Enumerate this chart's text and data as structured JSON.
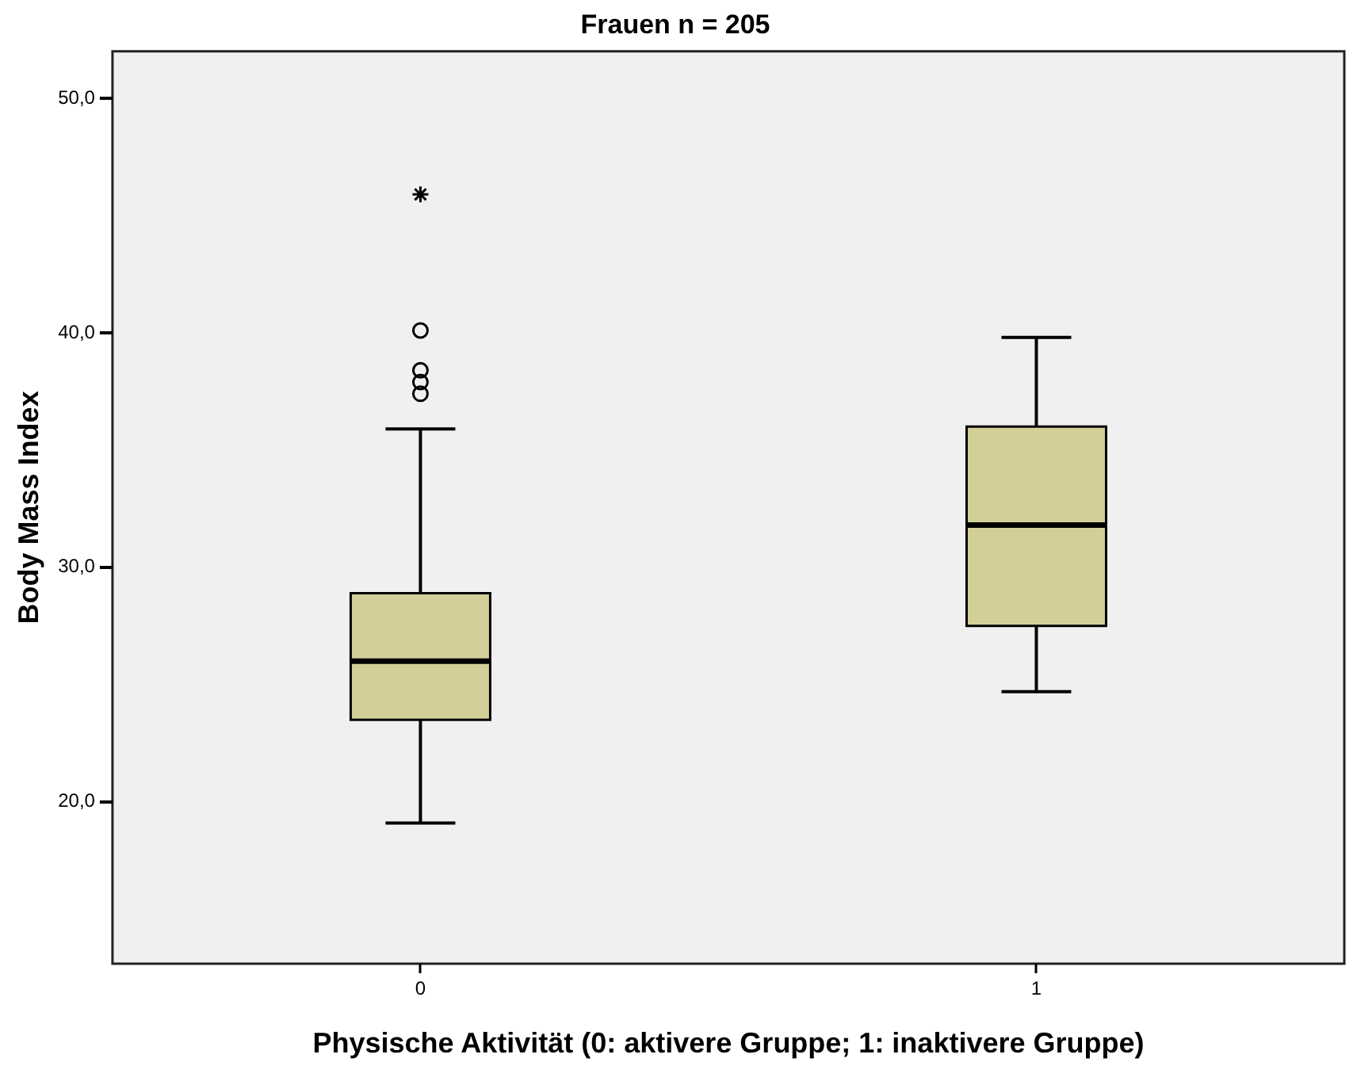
{
  "chart_data": {
    "type": "box",
    "title": "Frauen n = 205",
    "xlabel": "Physische Aktivität (0: aktivere Gruppe; 1: inaktivere Gruppe)",
    "ylabel": "Body Mass Index",
    "categories": [
      "0",
      "1"
    ],
    "ylim": [
      13.1,
      52
    ],
    "yticks": [
      {
        "value": 20,
        "label": "20,0"
      },
      {
        "value": 30,
        "label": "30,0"
      },
      {
        "value": 40,
        "label": "40,0"
      },
      {
        "value": 50,
        "label": "50,0"
      }
    ],
    "grid": false,
    "legend": false,
    "series": [
      {
        "color": "#d3cf98",
        "boxes": [
          {
            "low": 19.1,
            "q1": 23.5,
            "median": 26.0,
            "q3": 28.9,
            "high": 35.9,
            "outliers": [
              40.1,
              38.4,
              37.9,
              37.4
            ]
          },
          {
            "low": 24.7,
            "q1": 27.5,
            "median": 31.8,
            "q3": 36.0,
            "high": 39.8
          }
        ]
      },
      {
        "type": "scatter",
        "color": "#000000",
        "marker": "cross",
        "x": [
          "0"
        ],
        "values": [
          45.9
        ]
      }
    ]
  }
}
